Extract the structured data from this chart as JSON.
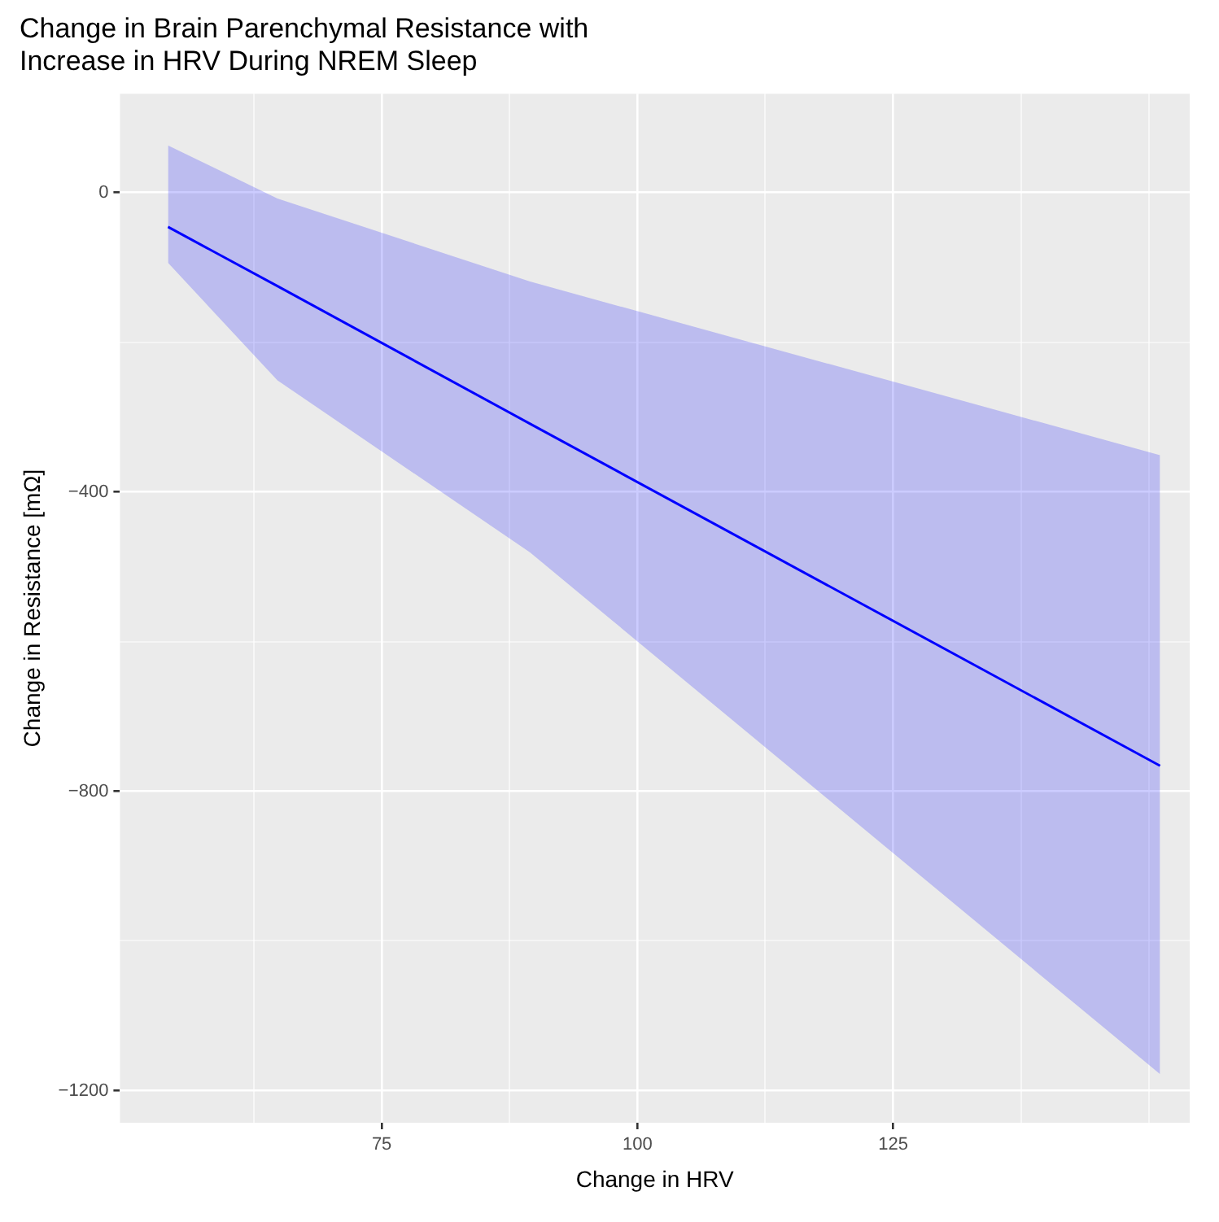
{
  "chart_data": {
    "type": "line",
    "title": "Change in Brain Parenchymal Resistance with Increase in HRV During NREM Sleep",
    "xlabel": "Change in HRV",
    "ylabel": "Change in Resistance [mΩ]",
    "series": [
      {
        "color": "#0000ff",
        "x": [
          54.1,
          64.8,
          89.5,
          151.1
        ],
        "values": [
          -46,
          -125,
          -309,
          -766
        ],
        "lower": [
          -94,
          -251,
          -481,
          -1178
        ],
        "upper": [
          63,
          -8,
          -119,
          -351
        ]
      }
    ],
    "xlim": [
      49.4,
      154
    ],
    "xticks": [
      {
        "value": 62.5,
        "label": null
      },
      75,
      {
        "value": 87.5,
        "label": null
      },
      100,
      {
        "value": 112.5,
        "label": null
      },
      125,
      {
        "value": 137.5,
        "label": null
      },
      {
        "value": 150,
        "label": null
      }
    ],
    "ylim": [
      -1243,
      132
    ],
    "yticks": [
      {
        "value": -1200,
        "label": "−1200"
      },
      {
        "value": -1000,
        "label": null
      },
      {
        "value": -800,
        "label": "−800"
      },
      {
        "value": -600,
        "label": null
      },
      {
        "value": -400,
        "label": "−400"
      },
      {
        "value": -200,
        "label": null
      },
      0
    ],
    "grid": true,
    "legend": false,
    "marker": "none",
    "line_style": "solid"
  }
}
